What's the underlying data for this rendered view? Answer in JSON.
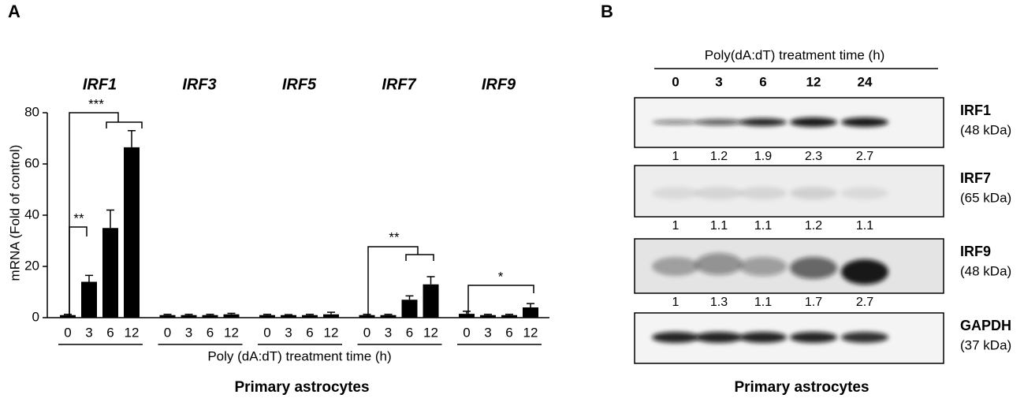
{
  "chart_data": {
    "type": "bar",
    "panel_label": "A",
    "groups": [
      {
        "name": "IRF1",
        "values": [
          1,
          14,
          35,
          66.5
        ],
        "errors": [
          0.3,
          2.5,
          7,
          6.5
        ]
      },
      {
        "name": "IRF3",
        "values": [
          1,
          1,
          1,
          1.3
        ],
        "errors": [
          0.3,
          0.3,
          0.3,
          0.4
        ]
      },
      {
        "name": "IRF5",
        "values": [
          1,
          1,
          1,
          1.3
        ],
        "errors": [
          0.3,
          0.2,
          0.3,
          0.8
        ]
      },
      {
        "name": "IRF7",
        "values": [
          1,
          1,
          7,
          13
        ],
        "errors": [
          0.3,
          0.3,
          1.5,
          3
        ]
      },
      {
        "name": "IRF9",
        "values": [
          1.5,
          1,
          1,
          4
        ],
        "errors": [
          1,
          0.3,
          0.3,
          1.5
        ]
      }
    ],
    "categories": [
      0,
      3,
      6,
      12
    ],
    "color": "#000000",
    "ylim": [
      0,
      80
    ],
    "yticks": [
      0,
      20,
      40,
      60,
      80
    ],
    "ylabel": "mRNA (Fold of control)",
    "xlabel": "Poly (dA:dT) treatment time (h)",
    "footer": "Primary astrocytes",
    "annotations": [
      "***",
      "**",
      "**",
      "*"
    ]
  },
  "blot": {
    "panel_label": "B",
    "header": "Poly(dA:dT) treatment time (h)",
    "lanes": [
      "0",
      "3",
      "6",
      "12",
      "24"
    ],
    "rows": [
      {
        "name": "IRF1",
        "size": "(48 kDa)",
        "quant": [
          1,
          1.2,
          1.9,
          2.3,
          2.7
        ]
      },
      {
        "name": "IRF7",
        "size": "(65 kDa)",
        "quant": [
          1,
          1.1,
          1.1,
          1.2,
          1.1
        ]
      },
      {
        "name": "IRF9",
        "size": "(48 kDa)",
        "quant": [
          1,
          1.3,
          1.1,
          1.7,
          2.7
        ]
      },
      {
        "name": "GAPDH",
        "size": "(37 kDa)"
      }
    ],
    "footer": "Primary astrocytes"
  }
}
